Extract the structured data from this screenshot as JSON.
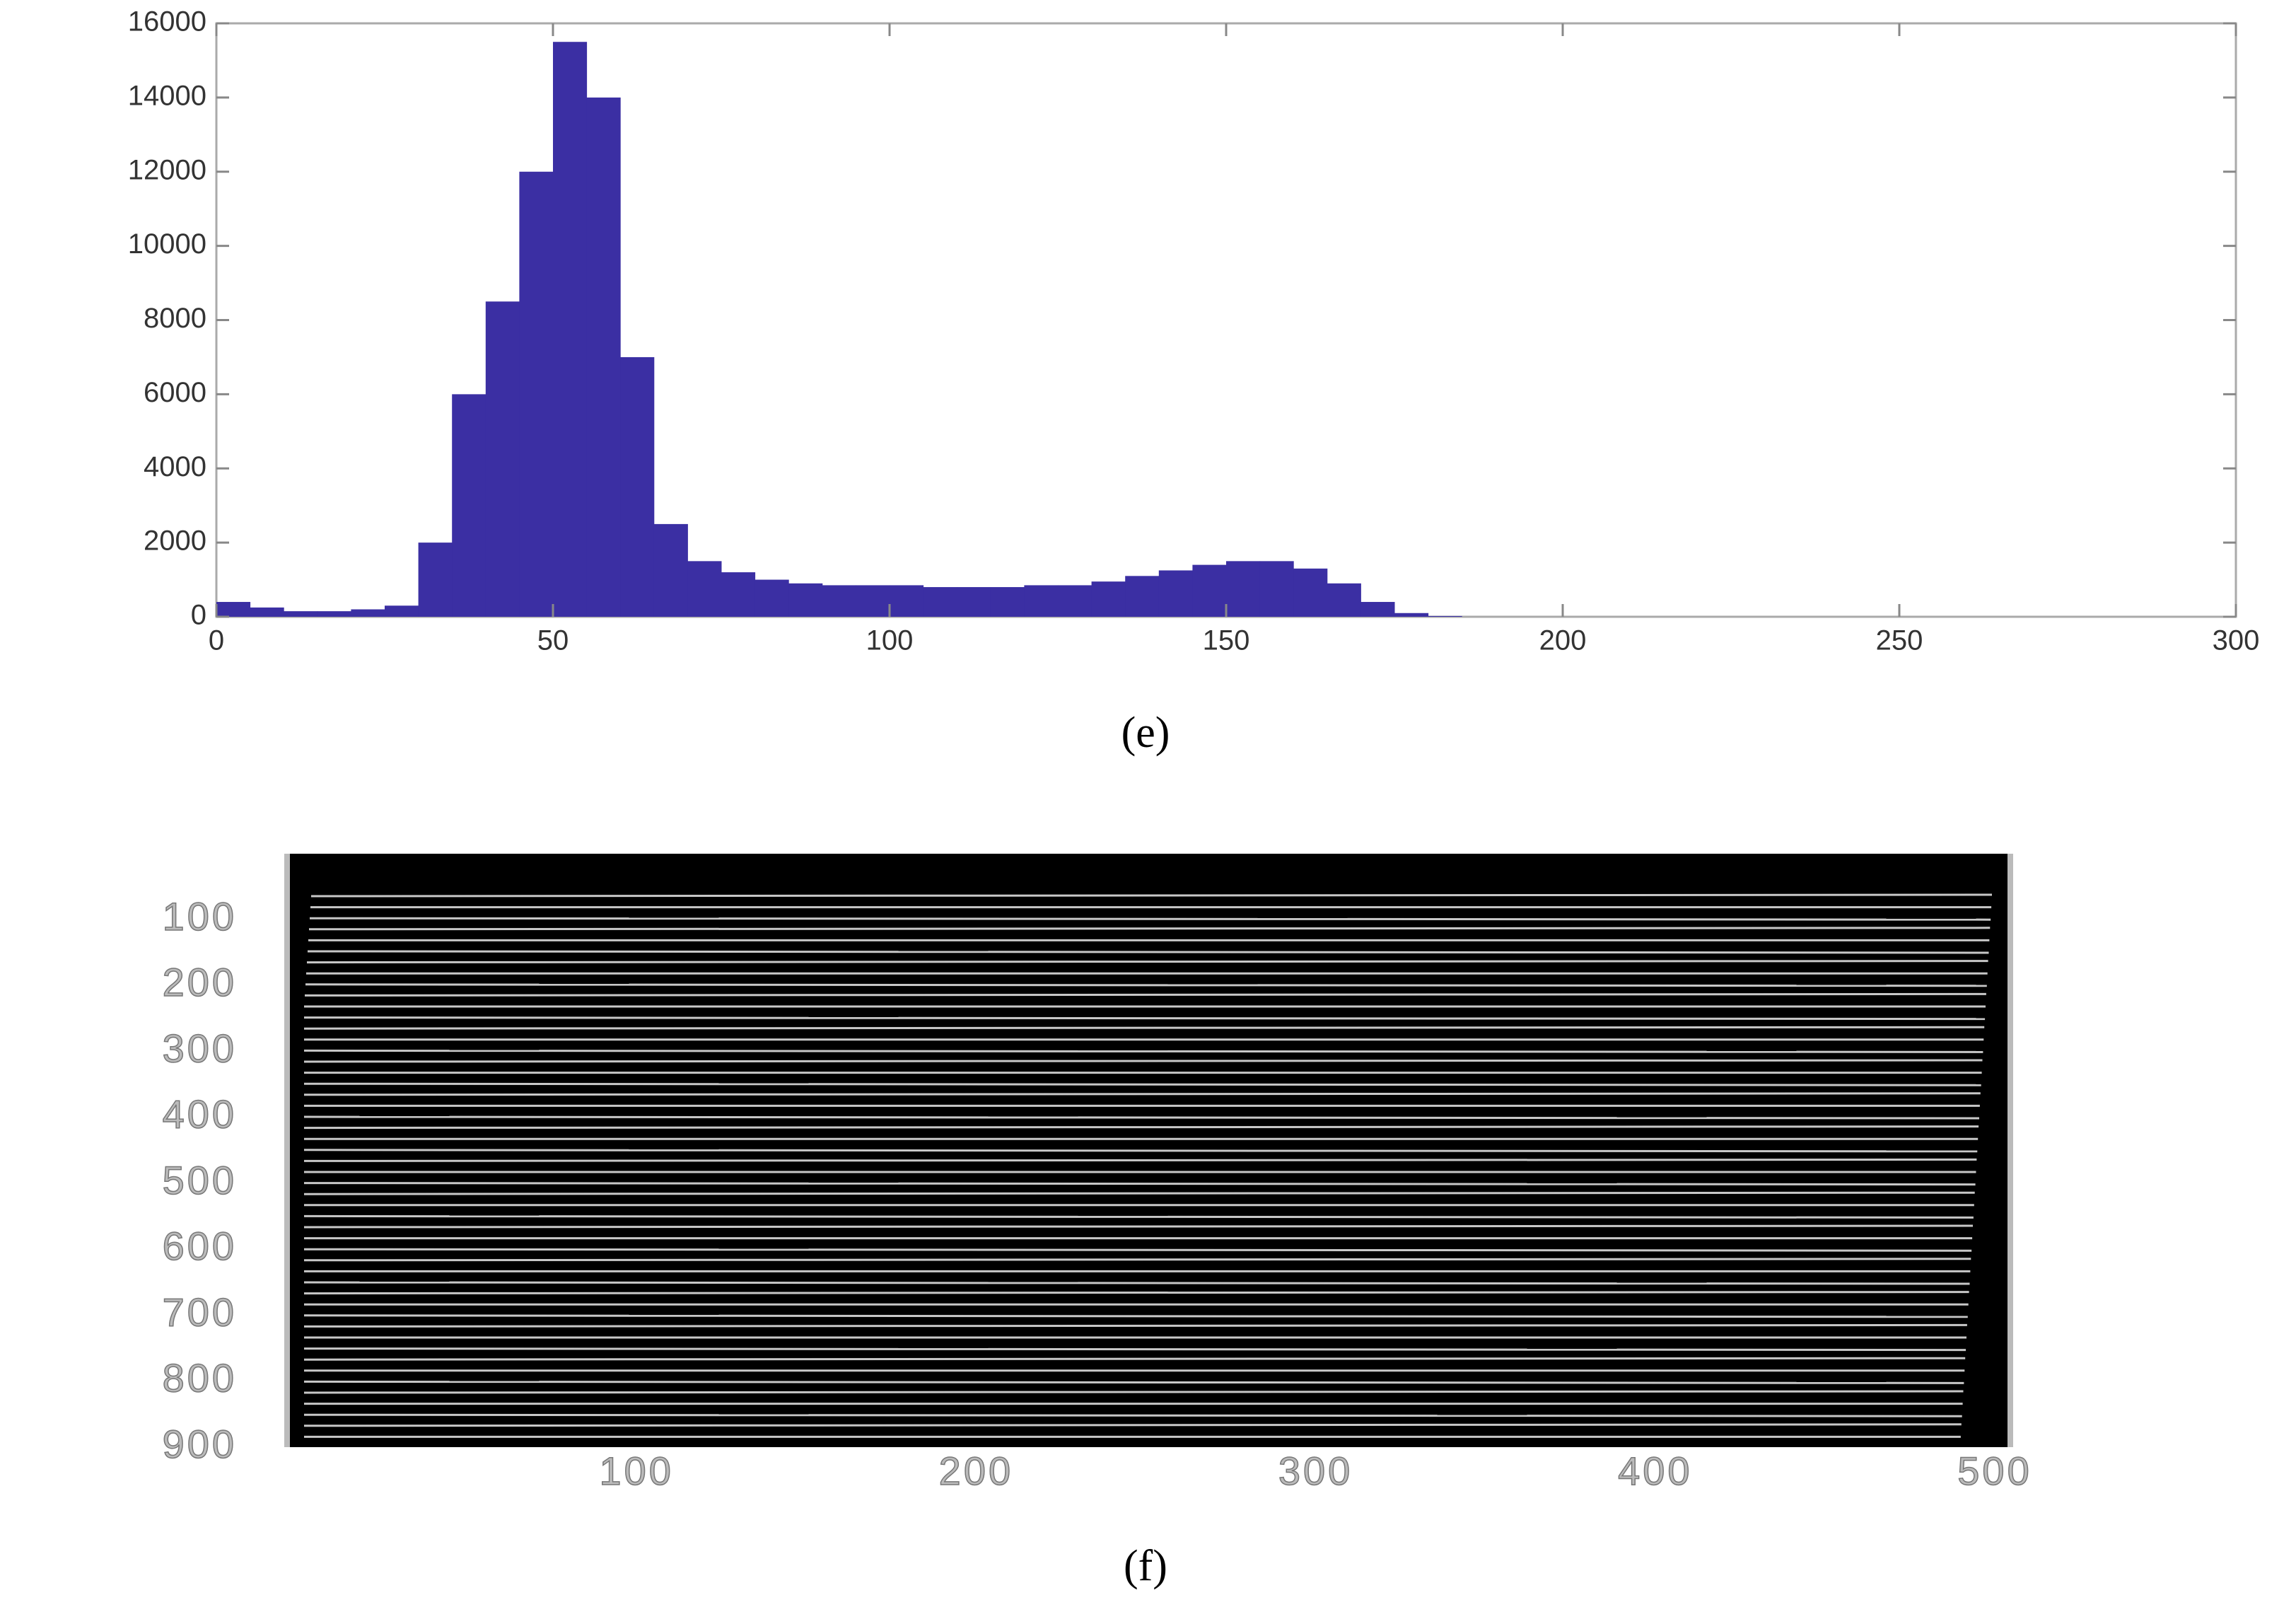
{
  "chart_data": [
    {
      "type": "histogram",
      "caption": "(e)",
      "color": "#3b2fa3",
      "bins": [
        0,
        5,
        10,
        15,
        20,
        25,
        30,
        35,
        40,
        45,
        50,
        55,
        60,
        65,
        70,
        75,
        80,
        85,
        90,
        95,
        100,
        105,
        110,
        115,
        120,
        125,
        130,
        135,
        140,
        145,
        150,
        155,
        160,
        165,
        170,
        175,
        180,
        185
      ],
      "values": [
        400,
        250,
        150,
        150,
        200,
        300,
        2000,
        6000,
        8500,
        12000,
        15500,
        14000,
        7000,
        2500,
        1500,
        1200,
        1000,
        900,
        850,
        850,
        850,
        800,
        800,
        800,
        850,
        850,
        950,
        1100,
        1250,
        1400,
        1500,
        1500,
        1300,
        900,
        400,
        100,
        20
      ],
      "xlim": [
        0,
        300
      ],
      "xticks": [
        0,
        50,
        100,
        150,
        200,
        250,
        300
      ],
      "ylim": [
        0,
        16000
      ],
      "yticks": [
        0,
        2000,
        4000,
        6000,
        8000,
        10000,
        12000,
        14000,
        16000
      ]
    },
    {
      "type": "image",
      "caption": "(f)",
      "xlim": [
        0,
        500
      ],
      "xticks": [
        100,
        200,
        300,
        400,
        500
      ],
      "ylim": [
        0,
        900
      ],
      "yticks": [
        100,
        200,
        300,
        400,
        500,
        600,
        700,
        800,
        900
      ]
    }
  ]
}
